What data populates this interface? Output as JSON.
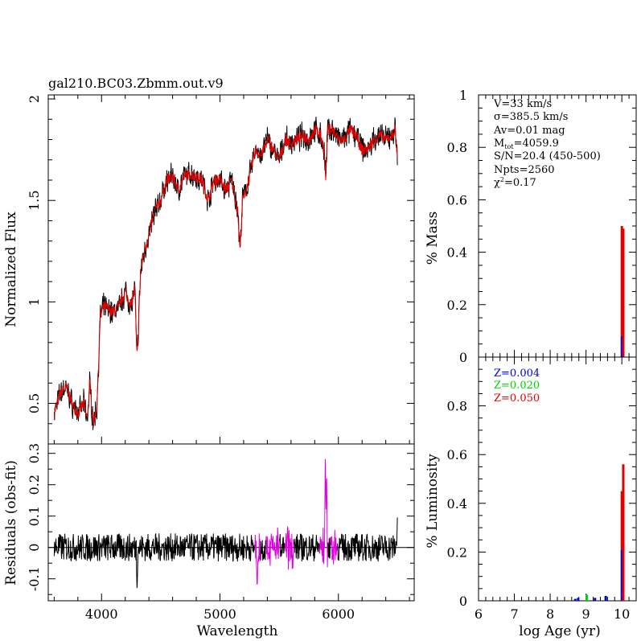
{
  "title": "gal210.BC03.Zbmm.out.v9",
  "chart_data": [
    {
      "id": "spectrum",
      "type": "line",
      "ylabel": "Normalized Flux",
      "xlim": [
        3550,
        6640
      ],
      "ylim": [
        0.3,
        2.02
      ],
      "yticks": [
        0.5,
        1,
        1.5,
        2
      ],
      "yticklabels": [
        "0.5",
        "1",
        "1.5",
        "2"
      ],
      "anchors_x": [
        3600,
        3650,
        3700,
        3750,
        3800,
        3850,
        3880,
        3900,
        3930,
        3960,
        3990,
        4020,
        4060,
        4100,
        4150,
        4200,
        4250,
        4280,
        4300,
        4330,
        4360,
        4400,
        4450,
        4500,
        4550,
        4600,
        4650,
        4700,
        4750,
        4800,
        4850,
        4900,
        4950,
        5000,
        5050,
        5100,
        5150,
        5170,
        5190,
        5220,
        5260,
        5300,
        5350,
        5400,
        5450,
        5500,
        5550,
        5600,
        5650,
        5700,
        5750,
        5800,
        5850,
        5880,
        5893,
        5910,
        5950,
        6000,
        6050,
        6100,
        6150,
        6200,
        6250,
        6300,
        6350,
        6400,
        6450,
        6480,
        6500
      ],
      "anchors_y": [
        0.45,
        0.55,
        0.58,
        0.5,
        0.45,
        0.5,
        0.42,
        0.6,
        0.4,
        0.48,
        0.93,
        0.98,
        0.96,
        0.95,
        0.98,
        1.05,
        0.98,
        1.07,
        0.72,
        1.15,
        1.25,
        1.33,
        1.45,
        1.5,
        1.6,
        1.62,
        1.55,
        1.62,
        1.63,
        1.62,
        1.6,
        1.5,
        1.6,
        1.6,
        1.55,
        1.6,
        1.45,
        1.25,
        1.5,
        1.55,
        1.65,
        1.75,
        1.72,
        1.8,
        1.75,
        1.7,
        1.8,
        1.78,
        1.8,
        1.82,
        1.8,
        1.85,
        1.82,
        1.75,
        1.6,
        1.85,
        1.85,
        1.8,
        1.8,
        1.85,
        1.82,
        1.75,
        1.75,
        1.8,
        1.82,
        1.8,
        1.82,
        1.85,
        1.7
      ],
      "series": [
        {
          "name": "observed",
          "color": "#000000"
        },
        {
          "name": "model fit",
          "color": "#e00000"
        }
      ]
    },
    {
      "id": "residuals",
      "type": "line",
      "xlabel": "Wavelength",
      "ylabel": "Residuals (obs-fit)",
      "xlim": [
        3550,
        6640
      ],
      "ylim": [
        -0.17,
        0.33
      ],
      "xticks": [
        4000,
        5000,
        6000
      ],
      "xticklabels": [
        "4000",
        "5000",
        "6000"
      ],
      "yticks": [
        -0.1,
        0,
        0.1,
        0.2,
        0.3
      ],
      "yticklabels": [
        "-0.1",
        "0",
        "0.1",
        "0.2",
        "0.3"
      ],
      "masked_windows": [
        [
          5290,
          5340
        ],
        [
          5390,
          5500
        ],
        [
          5550,
          5620
        ],
        [
          5840,
          5910
        ],
        [
          5930,
          5990
        ]
      ],
      "features": [
        {
          "x": 4300,
          "y": -0.14
        },
        {
          "x": 5315,
          "y": -0.15
        },
        {
          "x": 5890,
          "y": 0.3
        },
        {
          "x": 5900,
          "y": 0.24
        },
        {
          "x": 6500,
          "y": 0.13
        }
      ],
      "series": [
        {
          "name": "residual",
          "color": "#000000"
        },
        {
          "name": "masked",
          "color": "#e000e0"
        },
        {
          "name": "zero",
          "color": "#000000"
        }
      ]
    },
    {
      "id": "mass",
      "type": "bar",
      "ylabel": "% Mass",
      "xlim": [
        6,
        10.4
      ],
      "ylim": [
        0,
        1
      ],
      "yticks": [
        0,
        0.2,
        0.4,
        0.6,
        0.8,
        1
      ],
      "yticklabels": [
        "0",
        "0.2",
        "0.4",
        "0.6",
        "0.8",
        "1"
      ],
      "bars": [
        {
          "age": 10.0,
          "Z": "0.004",
          "value": 0.08
        },
        {
          "age": 10.0,
          "Z": "0.050",
          "value": 0.42
        },
        {
          "age": 10.04,
          "Z": "0.050",
          "value": 0.49
        }
      ]
    },
    {
      "id": "luminosity",
      "type": "bar",
      "xlabel": "log Age (yr)",
      "ylabel": "% Luminosity",
      "xlim": [
        6,
        10.4
      ],
      "ylim": [
        0,
        1
      ],
      "xticks": [
        6,
        7,
        8,
        9,
        10
      ],
      "xticklabels": [
        "6",
        "7",
        "8",
        "9",
        "10"
      ],
      "yticks": [
        0,
        0.2,
        0.4,
        0.6,
        0.8
      ],
      "yticklabels": [
        "0",
        "0.2",
        "0.4",
        "0.6",
        "0.8"
      ],
      "bars": [
        {
          "age": 8.7,
          "Z": "0.004",
          "value": 0.008
        },
        {
          "age": 8.78,
          "Z": "0.004",
          "value": 0.012
        },
        {
          "age": 9.02,
          "Z": "0.020",
          "value": 0.025
        },
        {
          "age": 9.25,
          "Z": "0.004",
          "value": 0.012
        },
        {
          "age": 9.55,
          "Z": "0.004",
          "value": 0.02
        },
        {
          "age": 10.0,
          "Z": "0.004",
          "value": 0.21
        },
        {
          "age": 10.0,
          "Z": "0.050",
          "value": 0.24
        },
        {
          "age": 10.04,
          "Z": "0.050",
          "value": 0.56
        }
      ]
    }
  ],
  "annotations": {
    "lines": [
      "V=33 km/s",
      "σ=385.5 km/s",
      "Av=0.01 mag",
      "M",
      "S/N=20.4 (450-500)",
      "Npts=2560",
      "χ",
      "=0.17"
    ],
    "mass_sub": "tot",
    "mass_value": "=4059.9",
    "chi_sup": "2"
  },
  "legend": [
    {
      "label": "Z=0.004",
      "color": "#0000e0"
    },
    {
      "label": "Z=0.020",
      "color": "#00d000"
    },
    {
      "label": "Z=0.050",
      "color": "#e00000"
    }
  ]
}
